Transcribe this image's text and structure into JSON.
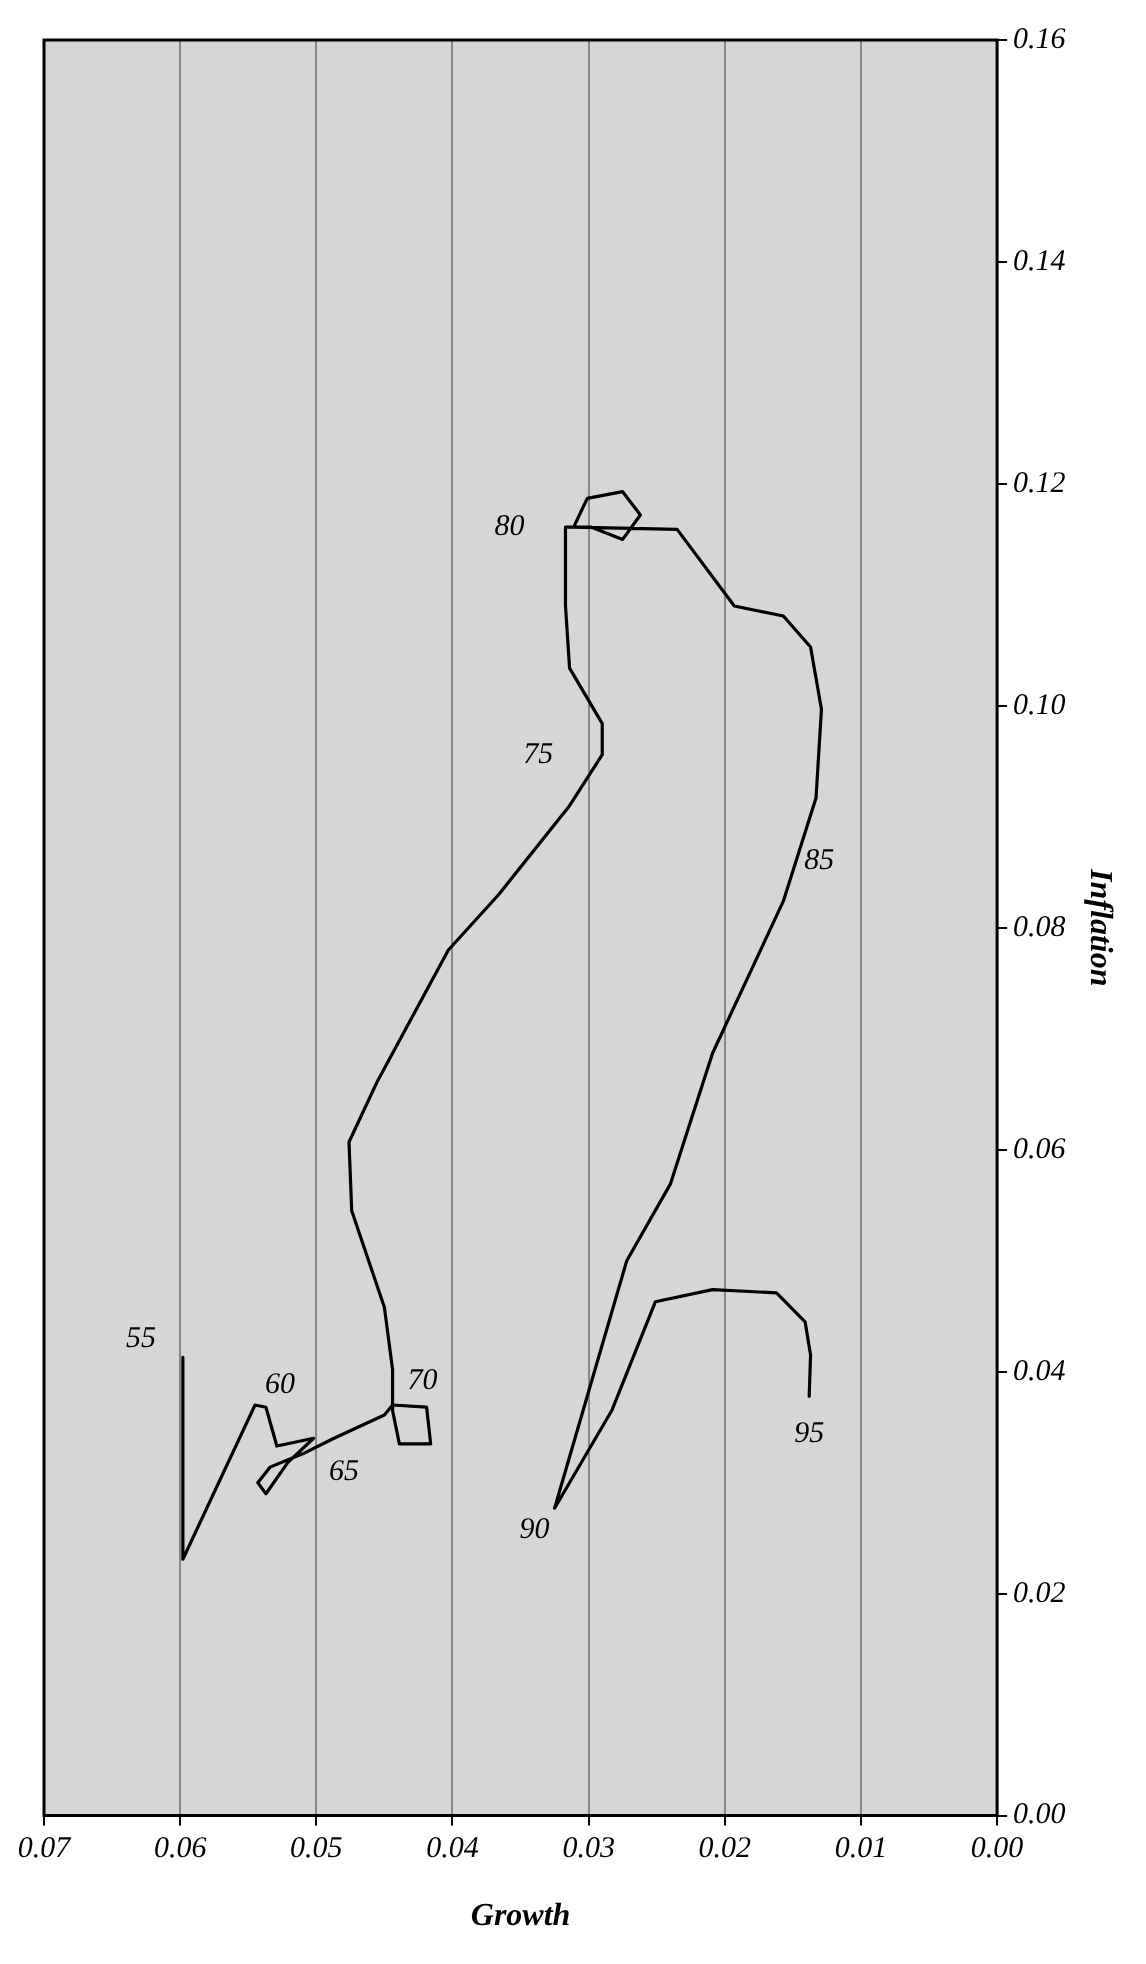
{
  "chart_data": {
    "type": "line",
    "xlabel": "Growth",
    "ylabel": "Inflation",
    "xlim": [
      0.07,
      0
    ],
    "ylim": [
      0,
      0.16
    ],
    "xticks": [
      {
        "value": 0,
        "label": "0.00"
      },
      {
        "value": 0.01,
        "label": "0.01"
      },
      {
        "value": 0.02,
        "label": "0.02"
      },
      {
        "value": 0.03,
        "label": "0.03"
      },
      {
        "value": 0.04,
        "label": "0.04"
      },
      {
        "value": 0.05,
        "label": "0.05"
      },
      {
        "value": 0.06,
        "label": "0.06"
      },
      {
        "value": 0.07,
        "label": "0.07"
      }
    ],
    "yticks": [
      {
        "value": 0,
        "label": "0.00"
      },
      {
        "value": 0.02,
        "label": "0.02"
      },
      {
        "value": 0.04,
        "label": "0.04"
      },
      {
        "value": 0.06,
        "label": "0.06"
      },
      {
        "value": 0.08,
        "label": "0.08"
      },
      {
        "value": 0.1,
        "label": "0.10"
      },
      {
        "value": 0.12,
        "label": "0.12"
      },
      {
        "value": 0.14,
        "label": "0.14"
      },
      {
        "value": 0.16,
        "label": "0.16"
      }
    ],
    "grid": "x",
    "marker": "none",
    "line_style": "solid",
    "legend": false,
    "series": [
      {
        "color": "#000000",
        "x": [
          0.0598,
          0.0598,
          0.0545,
          0.0537,
          0.0529,
          0.0502,
          0.0521,
          0.0537,
          0.0543,
          0.0534,
          0.051,
          0.0487,
          0.045,
          0.0444,
          0.0419,
          0.0416,
          0.0439,
          0.0444,
          0.0444,
          0.045,
          0.0474,
          0.0476,
          0.0455,
          0.0403,
          0.0366,
          0.0314,
          0.029,
          0.029,
          0.0314,
          0.0317,
          0.0317,
          0.0298,
          0.0275,
          0.0262,
          0.0275,
          0.0301,
          0.0311,
          0.0235,
          0.0193,
          0.0157,
          0.0137,
          0.0129,
          0.0133,
          0.0157,
          0.0209,
          0.024,
          0.0272,
          0.0325,
          0.0283,
          0.0251,
          0.0209,
          0.0162,
          0.0141,
          0.0137,
          0.0138
        ],
        "values": [
          0.0413,
          0.0231,
          0.037,
          0.0368,
          0.0333,
          0.034,
          0.0318,
          0.029,
          0.03,
          0.0314,
          0.0326,
          0.034,
          0.0361,
          0.037,
          0.0368,
          0.0335,
          0.0335,
          0.0365,
          0.0402,
          0.0458,
          0.0545,
          0.0607,
          0.0662,
          0.078,
          0.083,
          0.091,
          0.0956,
          0.0984,
          0.1034,
          0.109,
          0.1161,
          0.1161,
          0.115,
          0.1172,
          0.1193,
          0.1187,
          0.1161,
          0.1159,
          0.109,
          0.1081,
          0.1053,
          0.0997,
          0.0917,
          0.0824,
          0.0687,
          0.0569,
          0.05,
          0.0277,
          0.0365,
          0.0463,
          0.0474,
          0.0471,
          0.0445,
          0.0415,
          0.0378
        ]
      }
    ],
    "annotations": [
      {
        "text": "55",
        "x": 0.0598,
        "y": 0.0413
      },
      {
        "text": "60",
        "x": 0.0537,
        "y": 0.0368
      },
      {
        "text": "65",
        "x": 0.0487,
        "y": 0.034
      },
      {
        "text": "70",
        "x": 0.0444,
        "y": 0.037
      },
      {
        "text": "75",
        "x": 0.029,
        "y": 0.0956
      },
      {
        "text": "80",
        "x": 0.0317,
        "y": 0.1161
      },
      {
        "text": "85",
        "x": 0.0157,
        "y": 0.0824
      },
      {
        "text": "90",
        "x": 0.0325,
        "y": 0.0277
      },
      {
        "text": "95",
        "x": 0.0138,
        "y": 0.0378
      }
    ]
  }
}
